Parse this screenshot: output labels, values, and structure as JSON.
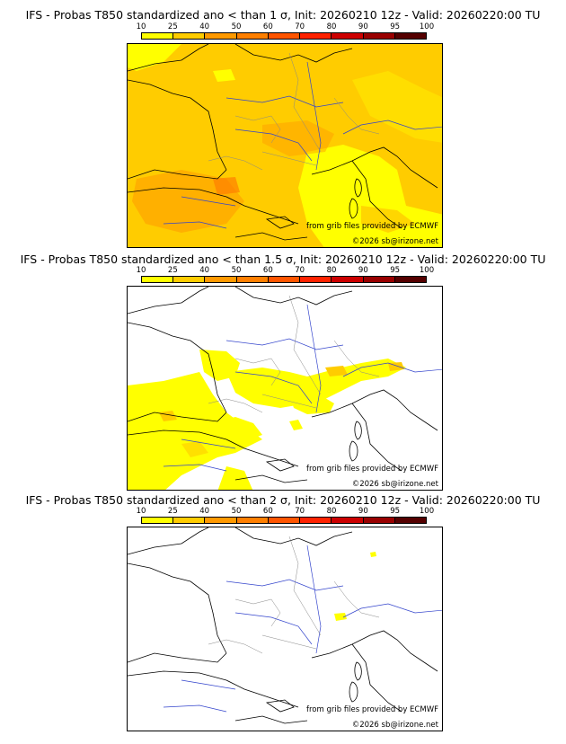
{
  "legend": {
    "ticks": [
      "10",
      "25",
      "40",
      "50",
      "60",
      "70",
      "80",
      "90",
      "95",
      "100"
    ],
    "colors": [
      "#ffff00",
      "#ffcc00",
      "#ff9900",
      "#ff7f00",
      "#ff5500",
      "#ff2200",
      "#cc0000",
      "#990000",
      "#550000"
    ]
  },
  "panels": [
    {
      "title": "IFS - Probas T850  standardized ano < than 1 σ, Init: 20260210 12z - Valid: 20260220:00 TU",
      "credit_source": "from grib files provided by ECMWF",
      "credit_copyright": "©2026 sb@irizone.net",
      "dominant_probability_class": "25-40"
    },
    {
      "title": "IFS - Probas T850  standardized ano < than 1.5 σ, Init: 20260210 12z - Valid: 20260220:00 TU",
      "credit_source": "from grib files provided by ECMWF",
      "credit_copyright": "©2026 sb@irizone.net",
      "dominant_probability_class": "10-25"
    },
    {
      "title": "IFS - Probas T850  standardized ano < than 2 σ, Init: 20260210 12z - Valid: 20260220:00 TU",
      "credit_source": "from grib files provided by ECMWF",
      "credit_copyright": "©2026 sb@irizone.net",
      "dominant_probability_class": "none"
    }
  ]
}
